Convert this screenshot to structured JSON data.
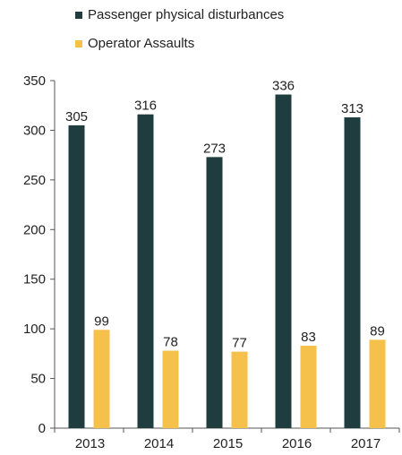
{
  "chart_data": {
    "type": "bar",
    "title": "",
    "xlabel": "",
    "ylabel": "",
    "categories": [
      "2013",
      "2014",
      "2015",
      "2016",
      "2017"
    ],
    "series": [
      {
        "name": "Passenger physical disturbances",
        "color": "#1f3d3e",
        "values": [
          305,
          316,
          273,
          336,
          313
        ]
      },
      {
        "name": "Operator Assaults",
        "color": "#f5c14a",
        "values": [
          99,
          78,
          77,
          83,
          89
        ]
      }
    ],
    "ylim": [
      0,
      350
    ],
    "yticks": [
      0,
      50,
      100,
      150,
      200,
      250,
      300,
      350
    ],
    "grid": false,
    "legend_position": "top",
    "data_labels": true
  }
}
